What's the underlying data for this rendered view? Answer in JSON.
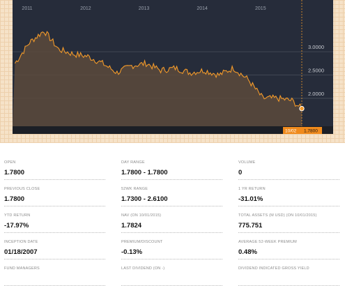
{
  "chart": {
    "years": [
      "2011",
      "2012",
      "2013",
      "2014",
      "2015"
    ],
    "y_ticks": [
      "3.0000",
      "2.5000",
      "2.0000"
    ],
    "current_date": "10/02",
    "current_value": "1.7800",
    "colors": {
      "background": "#262c3a",
      "line": "#f39a2a",
      "fill": "#5c4a3c",
      "flag": "#f08a1c"
    }
  },
  "chart_data": {
    "type": "area",
    "x": [
      "2010-11",
      "2011-02",
      "2011-05",
      "2011-08",
      "2011-11",
      "2012-02",
      "2012-05",
      "2012-08",
      "2012-11",
      "2013-02",
      "2013-05",
      "2013-08",
      "2013-11",
      "2014-02",
      "2014-05",
      "2014-08",
      "2014-11",
      "2015-02",
      "2015-05",
      "2015-08",
      "2015-10-02"
    ],
    "values": [
      2.75,
      3.2,
      3.45,
      3.05,
      2.95,
      2.9,
      2.75,
      2.55,
      2.7,
      2.75,
      2.6,
      2.65,
      2.55,
      2.6,
      2.5,
      2.65,
      2.4,
      2.0,
      2.0,
      1.95,
      1.78
    ],
    "y_ticks": [
      3.0,
      2.5,
      2.0
    ],
    "ylim": [
      1.4,
      3.9
    ],
    "xlabel": "",
    "ylabel": ""
  },
  "stats": [
    {
      "label": "OPEN",
      "value": "1.7800"
    },
    {
      "label": "DAY RANGE",
      "value": "1.7800 - 1.7800"
    },
    {
      "label": "VOLUME",
      "value": "0"
    },
    {
      "label": "PREVIOUS CLOSE",
      "value": "1.7800"
    },
    {
      "label": "52WK RANGE",
      "value": "1.7300 - 2.6100"
    },
    {
      "label": "1 YR RETURN",
      "value": "-31.01%"
    },
    {
      "label": "YTD RETURN",
      "value": "-17.97%"
    },
    {
      "label": "NAV (ON 10/01/2015)",
      "value": "1.7824"
    },
    {
      "label": "TOTAL ASSETS (M USD) (ON 10/01/2015)",
      "value": "775.751"
    },
    {
      "label": "INCEPTION DATE",
      "value": "01/18/2007"
    },
    {
      "label": "PREMIUM/DISCOUNT",
      "value": "-0.13%"
    },
    {
      "label": "AVERAGE 52-WEEK PREMIUM",
      "value": "0.48%"
    },
    {
      "label": "FUND MANAGERS",
      "value": ""
    },
    {
      "label": "LAST DIVIDEND (ON -)",
      "value": ""
    },
    {
      "label": "DIVIDEND INDICATED GROSS YIELD",
      "value": ""
    }
  ]
}
